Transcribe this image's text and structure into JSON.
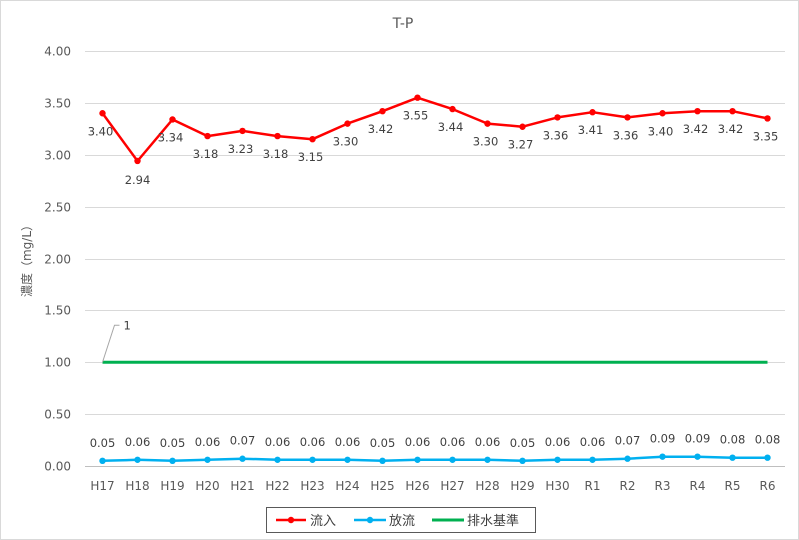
{
  "chart_data": {
    "type": "line",
    "title": "T-P",
    "ylabel": "濃度（mg/L）",
    "xlabel": "",
    "ylim": [
      0,
      4
    ],
    "y_ticks": [
      "0.00",
      "0.50",
      "1.00",
      "1.50",
      "2.00",
      "2.50",
      "3.00",
      "3.50",
      "4.00"
    ],
    "grid": "horizontal",
    "legend_position": "bottom",
    "categories": [
      "H17",
      "H18",
      "H19",
      "H20",
      "H21",
      "H22",
      "H23",
      "H24",
      "H25",
      "H26",
      "H27",
      "H28",
      "H29",
      "H30",
      "R1",
      "R2",
      "R3",
      "R4",
      "R5",
      "R6"
    ],
    "series": [
      {
        "name": "流入",
        "color": "#ff0000",
        "values": [
          3.4,
          2.94,
          3.34,
          3.18,
          3.23,
          3.18,
          3.15,
          3.3,
          3.42,
          3.55,
          3.44,
          3.3,
          3.27,
          3.36,
          3.41,
          3.36,
          3.4,
          3.42,
          3.42,
          3.35
        ],
        "labels": [
          "3.40",
          "2.94",
          "3.34",
          "3.18",
          "3.23",
          "3.18",
          "3.15",
          "3.30",
          "3.42",
          "3.55",
          "3.44",
          "3.30",
          "3.27",
          "3.36",
          "3.41",
          "3.36",
          "3.40",
          "3.42",
          "3.42",
          "3.35"
        ]
      },
      {
        "name": "放流",
        "color": "#00b0f0",
        "values": [
          0.05,
          0.06,
          0.05,
          0.06,
          0.07,
          0.06,
          0.06,
          0.06,
          0.05,
          0.06,
          0.06,
          0.06,
          0.05,
          0.06,
          0.06,
          0.07,
          0.09,
          0.09,
          0.08,
          0.08
        ],
        "labels": [
          "0.05",
          "0.06",
          "0.05",
          "0.06",
          "0.07",
          "0.06",
          "0.06",
          "0.06",
          "0.05",
          "0.06",
          "0.06",
          "0.06",
          "0.05",
          "0.06",
          "0.06",
          "0.07",
          "0.09",
          "0.09",
          "0.08",
          "0.08"
        ]
      },
      {
        "name": "排水基準",
        "color": "#00b050",
        "values": [
          1,
          1,
          1,
          1,
          1,
          1,
          1,
          1,
          1,
          1,
          1,
          1,
          1,
          1,
          1,
          1,
          1,
          1,
          1,
          1
        ],
        "annotation": "1"
      }
    ]
  }
}
